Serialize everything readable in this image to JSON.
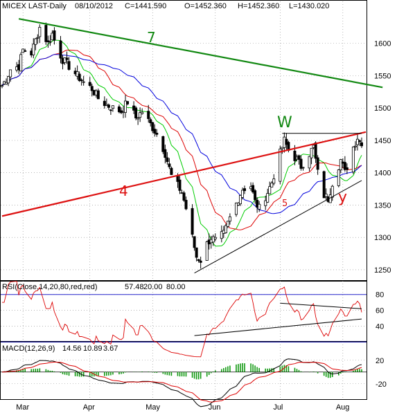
{
  "header": {
    "title": "MICEX LAST-Daily",
    "date": "08/10/2012",
    "close": "C=1441.590",
    "open": "O=1452.360",
    "high": "H=1452.360",
    "low": "L=1430.020"
  },
  "wave_labels": {
    "w7": "7",
    "w4": "4",
    "w5": "5",
    "wW": "W",
    "wY": "y"
  },
  "rsi_legend": {
    "name": "RSI(Close,14,20,80,red,red)",
    "value": "57.48",
    "lower": "20.00",
    "upper": "80.00"
  },
  "macd_legend": {
    "name": "MACD(12,26,9)",
    "macd": "14.56",
    "signal": "10.89",
    "hist": "3.67"
  },
  "colors": {
    "candle": "#000000",
    "ma_fast": "#00cc00",
    "ma_mid": "#dd0000",
    "ma_slow": "#0000dd",
    "line7": "#118811",
    "line4": "#dd1111",
    "rsi_line": "#dd0000",
    "rsi_lower": "#2222cc",
    "rsi_upper": "#2222cc",
    "macd_line": "#000000",
    "signal_line": "#dd0000",
    "hist": "#119911",
    "grid": "#888888"
  },
  "chart_data": [
    {
      "type": "candlestick",
      "title": "MICEX LAST-Daily",
      "x_start": "2012-02-20",
      "x_end": "2012-08-10",
      "x_ticks": [
        "Mar",
        "Apr",
        "May",
        "Jun",
        "Jul",
        "Aug"
      ],
      "x_tick_dates": [
        "2012-03-01",
        "2012-04-02",
        "2012-05-02",
        "2012-06-01",
        "2012-07-02",
        "2012-08-01"
      ],
      "y_ticks": [
        1250,
        1300,
        1350,
        1400,
        1450,
        1500,
        1550,
        1600
      ],
      "ylim": [
        1235,
        1650
      ],
      "close_approx": [
        [
          "2012-02-20",
          1535
        ],
        [
          "2012-02-22",
          1545
        ],
        [
          "2012-02-24",
          1560
        ],
        [
          "2012-02-28",
          1565
        ],
        [
          "2012-03-01",
          1590
        ],
        [
          "2012-03-05",
          1585
        ],
        [
          "2012-03-07",
          1605
        ],
        [
          "2012-03-09",
          1625
        ],
        [
          "2012-03-13",
          1600
        ],
        [
          "2012-03-15",
          1615
        ],
        [
          "2012-03-17",
          1595
        ],
        [
          "2012-03-20",
          1575
        ],
        [
          "2012-03-23",
          1565
        ],
        [
          "2012-03-27",
          1550
        ],
        [
          "2012-03-30",
          1540
        ],
        [
          "2012-04-03",
          1530
        ],
        [
          "2012-04-06",
          1515
        ],
        [
          "2012-04-10",
          1505
        ],
        [
          "2012-04-13",
          1500
        ],
        [
          "2012-04-17",
          1495
        ],
        [
          "2012-04-20",
          1510
        ],
        [
          "2012-04-24",
          1485
        ],
        [
          "2012-04-27",
          1495
        ],
        [
          "2012-05-02",
          1470
        ],
        [
          "2012-05-05",
          1455
        ],
        [
          "2012-05-08",
          1430
        ],
        [
          "2012-05-11",
          1395
        ],
        [
          "2012-05-14",
          1380
        ],
        [
          "2012-05-16",
          1370
        ],
        [
          "2012-05-18",
          1345
        ],
        [
          "2012-05-21",
          1300
        ],
        [
          "2012-05-23",
          1270
        ],
        [
          "2012-05-25",
          1265
        ],
        [
          "2012-05-28",
          1290
        ],
        [
          "2012-05-30",
          1300
        ],
        [
          "2012-06-01",
          1295
        ],
        [
          "2012-06-05",
          1305
        ],
        [
          "2012-06-08",
          1330
        ],
        [
          "2012-06-12",
          1360
        ],
        [
          "2012-06-14",
          1375
        ],
        [
          "2012-06-18",
          1380
        ],
        [
          "2012-06-20",
          1355
        ],
        [
          "2012-06-22",
          1345
        ],
        [
          "2012-06-26",
          1370
        ],
        [
          "2012-06-28",
          1385
        ],
        [
          "2012-07-02",
          1430
        ],
        [
          "2012-07-04",
          1450
        ],
        [
          "2012-07-06",
          1435
        ],
        [
          "2012-07-10",
          1420
        ],
        [
          "2012-07-12",
          1410
        ],
        [
          "2012-07-16",
          1430
        ],
        [
          "2012-07-18",
          1440
        ],
        [
          "2012-07-20",
          1400
        ],
        [
          "2012-07-23",
          1365
        ],
        [
          "2012-07-25",
          1360
        ],
        [
          "2012-07-27",
          1385
        ],
        [
          "2012-07-31",
          1420
        ],
        [
          "2012-08-02",
          1400
        ],
        [
          "2012-08-06",
          1440
        ],
        [
          "2012-08-08",
          1455
        ],
        [
          "2012-08-10",
          1441.59
        ]
      ],
      "overlays": [
        {
          "name": "7",
          "kind": "trendline",
          "points": [
            [
              "2012-02-28",
              1638
            ],
            [
              "2012-08-20",
              1532
            ]
          ]
        },
        {
          "name": "4",
          "kind": "trendline",
          "points": [
            [
              "2012-02-20",
              1333
            ],
            [
              "2012-08-12",
              1463
            ]
          ]
        },
        {
          "name": "W",
          "kind": "horizontal",
          "y": 1461,
          "from": "2012-07-03",
          "to": "2012-08-10"
        },
        {
          "name": "y",
          "kind": "trendline",
          "points": [
            [
              "2012-05-22",
              1245
            ],
            [
              "2012-08-10",
              1388
            ]
          ]
        }
      ]
    },
    {
      "type": "line",
      "title": "RSI(Close,14,20,80,red,red)",
      "y_ticks": [
        40,
        60,
        80
      ],
      "ylim": [
        22,
        85
      ],
      "levels": [
        20,
        80
      ],
      "last": 57.48
    },
    {
      "type": "bar+line",
      "title": "MACD(12,26,9)",
      "y_ticks": [
        -20,
        20
      ],
      "ylim": [
        -45,
        35
      ],
      "last": {
        "macd": 14.56,
        "signal": 10.89,
        "hist": 3.67
      }
    }
  ]
}
